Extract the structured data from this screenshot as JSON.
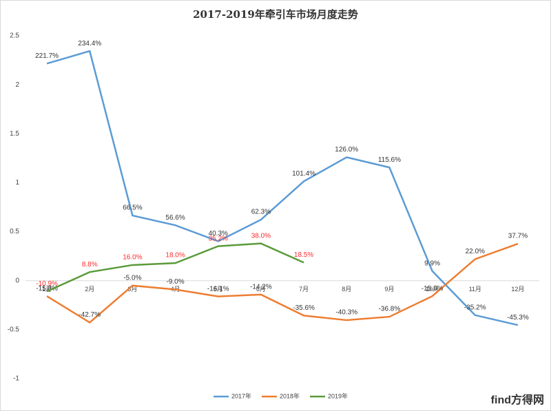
{
  "chart_data": {
    "type": "line",
    "title": "2017-2019年牵引车市场月度走势",
    "categories": [
      "1月",
      "2月",
      "3月",
      "4月",
      "5月",
      "6月",
      "7月",
      "8月",
      "9月",
      "10月",
      "11月",
      "12月"
    ],
    "series": [
      {
        "name": "2017年",
        "color": "#5b9bd5",
        "label_color": "#333333",
        "values": [
          2.217,
          2.344,
          0.665,
          0.566,
          0.403,
          0.623,
          1.014,
          1.26,
          1.156,
          0.099,
          -0.352,
          -0.453
        ],
        "value_labels": [
          "221.7%",
          "234.4%",
          "66.5%",
          "56.6%",
          "40.3%",
          "62.3%",
          "101.4%",
          "126.0%",
          "115.6%",
          "9.9%",
          "-35.2%",
          "-45.3%"
        ]
      },
      {
        "name": "2018年",
        "color": "#ed7d31",
        "label_color": "#333333",
        "values": [
          -0.158,
          -0.427,
          -0.05,
          -0.09,
          -0.161,
          -0.142,
          -0.356,
          -0.403,
          -0.368,
          -0.158,
          0.22,
          0.377
        ],
        "value_labels": [
          "-15.8%",
          "-42.7%",
          "-5.0%",
          "-9.0%",
          "-16.1%",
          "-14.2%",
          "-35.6%",
          "-40.3%",
          "-36.8%",
          "-15.8%",
          "22.0%",
          "37.7%"
        ]
      },
      {
        "name": "2019年",
        "color": "#5a9a3a",
        "label_color": "#ff2a2a",
        "values": [
          -0.109,
          0.088,
          0.16,
          0.18,
          0.352,
          0.38,
          0.185,
          null,
          null,
          null,
          null,
          null
        ],
        "value_labels": [
          "-10.9%",
          "8.8%",
          "16.0%",
          "18.0%",
          "35.2%",
          "38.0%",
          "18.5%",
          null,
          null,
          null,
          null,
          null
        ]
      }
    ],
    "ylim": [
      -1,
      2.5
    ],
    "yticks": [
      -1,
      -0.5,
      0,
      0.5,
      1,
      1.5,
      2,
      2.5
    ],
    "grid": false,
    "legend": "bottom",
    "watermark": "find方得网"
  }
}
